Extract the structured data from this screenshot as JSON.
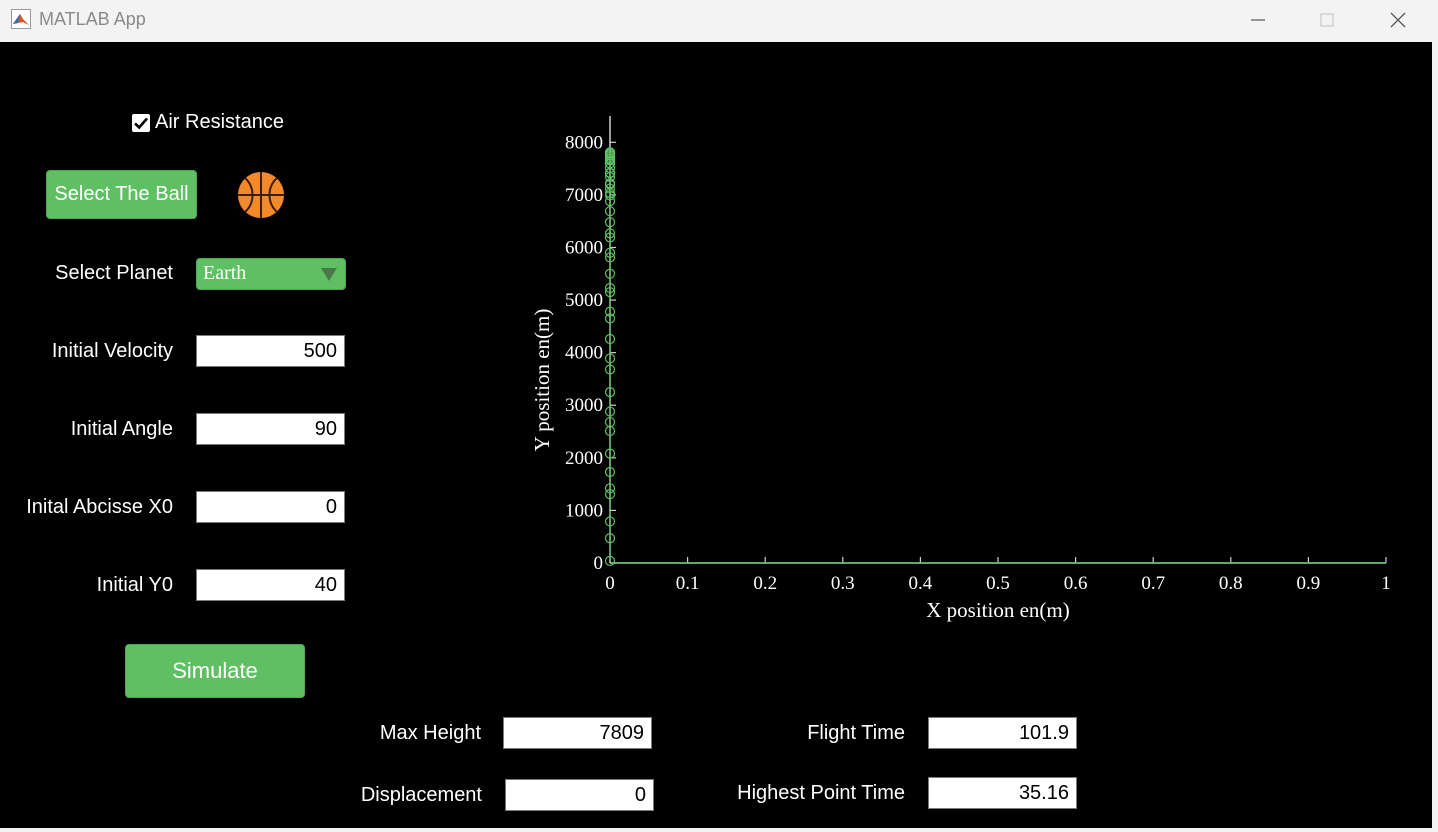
{
  "window": {
    "title": "MATLAB App"
  },
  "controls": {
    "air_resistance": {
      "label": "Air Resistance",
      "checked": true
    },
    "select_ball_label": "Select The Ball",
    "planet": {
      "label": "Select Planet",
      "value": "Earth"
    },
    "velocity": {
      "label": "Initial Velocity",
      "value": "500"
    },
    "angle": {
      "label": "Initial Angle",
      "value": "90"
    },
    "x0": {
      "label": "Inital Abcisse X0",
      "value": "0"
    },
    "y0": {
      "label": "Initial Y0",
      "value": "40"
    },
    "simulate_label": "Simulate"
  },
  "results": {
    "max_height": {
      "label": "Max Height",
      "value": "7809"
    },
    "displacement": {
      "label": "Displacement",
      "value": "0"
    },
    "flight_time": {
      "label": "Flight Time",
      "value": "101.9"
    },
    "highest_time": {
      "label": "Highest Point Time",
      "value": "35.16"
    }
  },
  "icons": {
    "ball": "basketball-icon",
    "check": "checkmark-icon"
  },
  "colors": {
    "accent": "#5ec062",
    "trajectory": "#5ec062",
    "background": "#000000"
  },
  "chart_data": {
    "type": "scatter",
    "xlabel": "X position en(m)",
    "ylabel": "Y position en(m)",
    "xlim": [
      0,
      1
    ],
    "ylim": [
      0,
      8500
    ],
    "x_ticks": [
      "0",
      "0.1",
      "0.2",
      "0.3",
      "0.4",
      "0.5",
      "0.6",
      "0.7",
      "0.8",
      "0.9",
      "1"
    ],
    "y_ticks": [
      "0",
      "1000",
      "2000",
      "3000",
      "4000",
      "5000",
      "6000",
      "7000",
      "8000"
    ],
    "grid": false,
    "series": [
      {
        "marker": "circle",
        "x": [
          0,
          0,
          0,
          0,
          0,
          0,
          0,
          0,
          0,
          0,
          0,
          0,
          0,
          0,
          0,
          0,
          0,
          0,
          0,
          0,
          0,
          0,
          0,
          0,
          0,
          0,
          0,
          0,
          0,
          0,
          0,
          0,
          0,
          0,
          0,
          0,
          0,
          0,
          0,
          0,
          0,
          0,
          0,
          0,
          0,
          0
        ],
        "y": [
          40,
          470,
          790,
          1310,
          1420,
          1730,
          2080,
          2510,
          2680,
          2880,
          3250,
          3680,
          3890,
          4260,
          4650,
          4780,
          5150,
          5230,
          5500,
          5810,
          5900,
          6190,
          6270,
          6480,
          6690,
          6880,
          6990,
          7120,
          7220,
          7340,
          7410,
          7510,
          7600,
          7660,
          7720,
          7760,
          7790,
          7805,
          7809,
          7790,
          7750,
          7690,
          7600,
          7420,
          7200,
          7030
        ]
      }
    ]
  }
}
